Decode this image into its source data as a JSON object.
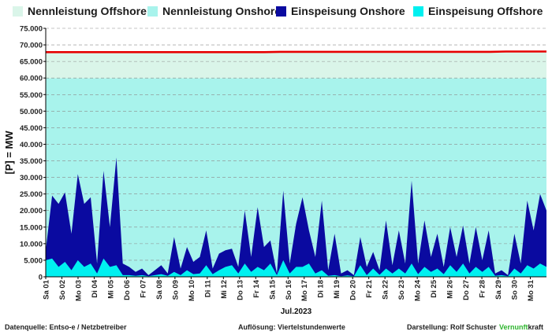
{
  "legend": [
    {
      "label": "Nennleistung Offshore",
      "color": "#daf5e9"
    },
    {
      "label": "Nennleistung Onshore",
      "color": "#a8f3ec"
    },
    {
      "label": "Einspeisung Onshore",
      "color": "#0a0aa0"
    },
    {
      "label": "Einspeisung Offshore",
      "color": "#00f0f0"
    }
  ],
  "footer": {
    "source": "Datenquelle:  Entso-e  / Netzbetreiber",
    "resolution": "Auflösung: Viertelstundenwerte",
    "credit": "Darstellung:  Rolf Schuster",
    "brand_a": "Vernunft",
    "brand_b": "kraft"
  },
  "chart_data": {
    "type": "area",
    "title": "",
    "xlabel": "Jul.2023",
    "ylabel": "[P] = MW",
    "ylim": [
      0,
      75000
    ],
    "yticks": [
      "0",
      "5.000",
      "10.000",
      "15.000",
      "20.000",
      "25.000",
      "30.000",
      "35.000",
      "40.000",
      "45.000",
      "50.000",
      "55.000",
      "60.000",
      "65.000",
      "70.000",
      "75.000"
    ],
    "categories": [
      "Sa 01",
      "So 02",
      "Mo 03",
      "Di 04",
      "Mi 05",
      "Do 06",
      "Fr 07",
      "Sa 08",
      "So 09",
      "Mo 10",
      "Di 11",
      "Mi 12",
      "Do 13",
      "Fr 14",
      "Sa 15",
      "So 16",
      "Mo 17",
      "Di 18",
      "Mi 19",
      "Do 20",
      "Fr 21",
      "Sa 22",
      "So 23",
      "Mo 24",
      "Di 25",
      "Mi 26",
      "Do 27",
      "Fr 28",
      "Sa 29",
      "So 30",
      "Mo 31"
    ],
    "x_half_days": [
      0,
      0.5,
      1,
      1.5,
      2,
      2.5,
      3,
      3.5,
      4,
      4.5,
      5,
      5.5,
      6,
      6.5,
      7,
      7.5,
      8,
      8.5,
      9,
      9.5,
      10,
      10.5,
      11,
      11.5,
      12,
      12.5,
      13,
      13.5,
      14,
      14.5,
      15,
      15.5,
      16,
      16.5,
      17,
      17.5,
      18,
      18.5,
      19,
      19.5,
      20,
      20.5,
      21,
      21.5,
      22,
      22.5,
      23,
      23.5,
      24,
      24.5,
      25,
      25.5,
      26,
      26.5,
      27,
      27.5,
      28,
      28.5,
      29,
      29.5,
      30,
      30.5,
      31
    ],
    "series": [
      {
        "name": "Nennleistung Offshore",
        "color": "#daf5e9",
        "stack_top": [
          67800,
          67800,
          67800,
          67800,
          67800,
          67800,
          67800,
          67800,
          67800,
          67800,
          67800,
          67800,
          67800,
          67800,
          67900,
          67900,
          67900,
          67900,
          67900,
          67900,
          67900,
          67900,
          67900,
          67900,
          67900,
          67900,
          67900,
          67900,
          68000,
          68000,
          68000
        ]
      },
      {
        "name": "Nennleistung Onshore",
        "color": "#a8f3ec",
        "values_const": 59900
      },
      {
        "name": "Einspeisung Onshore",
        "color": "#0a0aa0",
        "stack_top": [
          8000,
          24500,
          22000,
          25500,
          13000,
          31000,
          22000,
          24000,
          4000,
          32000,
          15000,
          36000,
          4000,
          3000,
          1500,
          2500,
          500,
          2000,
          3500,
          1000,
          12000,
          2500,
          9000,
          4500,
          6000,
          14000,
          2500,
          7000,
          8000,
          8500,
          3000,
          20000,
          6000,
          21000,
          9000,
          11000,
          1000,
          26000,
          4000,
          16000,
          24000,
          14000,
          6000,
          23000,
          2000,
          13000,
          1000,
          2000,
          500,
          12000,
          3000,
          7500,
          2000,
          17000,
          3500,
          14000,
          4000,
          29000,
          4000,
          17000,
          6000,
          13000,
          3000,
          15000,
          6000,
          15500,
          4000,
          15000,
          5000,
          14000,
          1000,
          2000,
          500,
          13000,
          4000,
          23000,
          14000,
          25000,
          20000
        ]
      },
      {
        "name": "Einspeisung Offshore",
        "color": "#00f0f0",
        "stack_top": [
          5000,
          5500,
          3000,
          4500,
          2000,
          5000,
          3000,
          4000,
          1000,
          5500,
          3000,
          3500,
          500,
          500,
          300,
          500,
          200,
          500,
          800,
          300,
          1500,
          500,
          2000,
          800,
          1000,
          3500,
          800,
          2000,
          3000,
          3500,
          1000,
          4000,
          1500,
          3000,
          2000,
          4000,
          500,
          5000,
          1000,
          3000,
          3000,
          4000,
          1000,
          2000,
          300,
          500,
          200,
          400,
          200,
          3500,
          500,
          2500,
          600,
          2500,
          1000,
          2500,
          1000,
          4000,
          800,
          3000,
          1500,
          2500,
          800,
          3500,
          1500,
          4000,
          1000,
          3000,
          1500,
          3000,
          300,
          500,
          200,
          2500,
          1000,
          3500,
          2500,
          4000,
          3000
        ]
      }
    ],
    "legend_position": "top",
    "grid": true
  }
}
